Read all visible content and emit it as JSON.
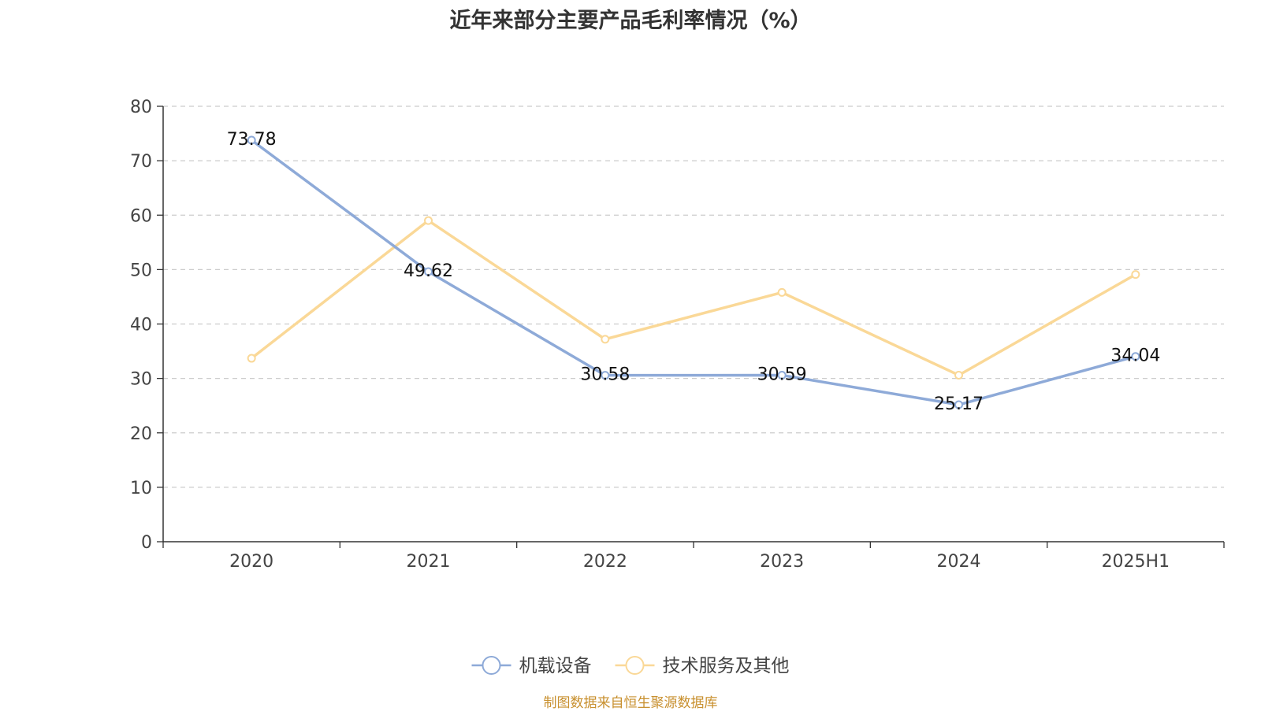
{
  "title": "近年来部分主要产品毛利率情况（%）",
  "source": "制图数据来自恒生聚源数据库",
  "chart_data": {
    "type": "line",
    "title": "近年来部分主要产品毛利率情况（%）",
    "categories": [
      "2020",
      "2021",
      "2022",
      "2023",
      "2024",
      "2025H1"
    ],
    "ylim": [
      0,
      80
    ],
    "yticks": [
      0,
      10,
      20,
      30,
      40,
      50,
      60,
      70,
      80
    ],
    "grid": true,
    "legend_position": "bottom",
    "series": [
      {
        "name": "机载设备",
        "color": "#8eaad8",
        "values": [
          73.78,
          49.62,
          30.58,
          30.59,
          25.17,
          34.04
        ],
        "labels": [
          "73.78",
          "49.62",
          "30.58",
          "30.59",
          "25.17",
          "34.04"
        ]
      },
      {
        "name": "技术服务及其他",
        "color": "#fad897",
        "values": [
          33.7,
          59.0,
          37.2,
          45.8,
          30.6,
          49.1
        ]
      }
    ]
  }
}
